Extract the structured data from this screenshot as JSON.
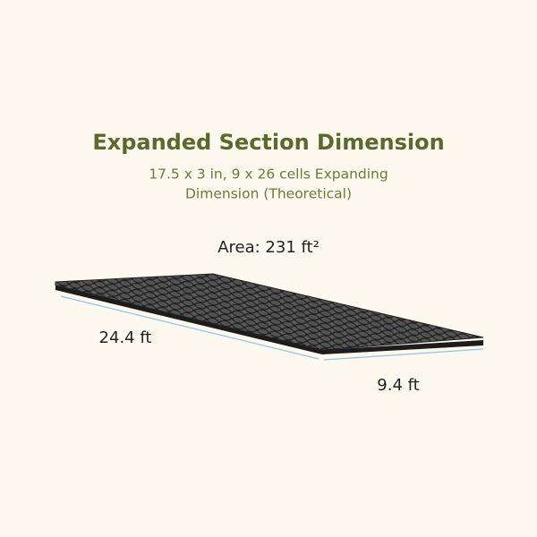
{
  "header": {
    "title": "Expanded Section Dimension",
    "subtitle_lines": [
      "17.5 x 3 in, 9 x 26 cells Expanding",
      "Dimension (Theoretical)"
    ]
  },
  "area_label": "Area: 231 ft²",
  "dimensions": {
    "length": "24.4 ft",
    "width": "9.4 ft"
  }
}
